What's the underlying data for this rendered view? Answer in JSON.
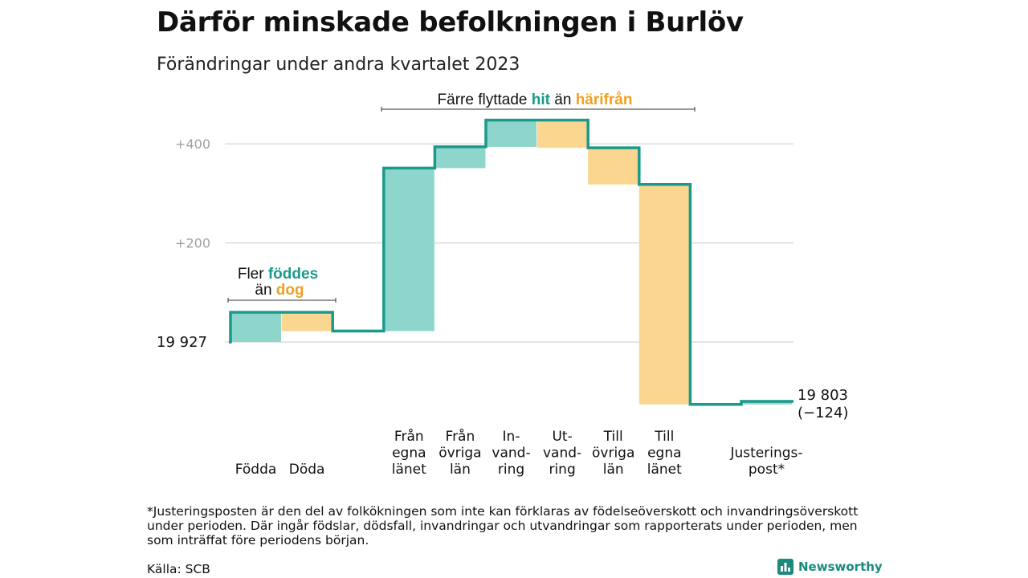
{
  "title": "Därför minskade befolkningen i Burlöv",
  "subtitle": "Förändringar under andra kvartalet 2023",
  "colors": {
    "teal": "#1a9a8a",
    "teal_fill": "#8ed6cc",
    "orange": "#f0a020",
    "orange_fill": "#fad690",
    "grid": "#dcdcdc",
    "tick": "#a0a0a0"
  },
  "chart_data": {
    "type": "waterfall",
    "baseline": 19927,
    "start_label": "19  927",
    "end_label_value": "19 803",
    "end_label_change": "(−124)",
    "y_ticks": [
      {
        "value": 400,
        "label": "+400"
      },
      {
        "value": 200,
        "label": "+200"
      }
    ],
    "ylim": [
      -140,
      450
    ],
    "steps": [
      {
        "label": [
          "Födda"
        ],
        "change": 60,
        "kind": "in"
      },
      {
        "label": [
          "Döda"
        ],
        "change": -38,
        "kind": "out"
      },
      {
        "label": [],
        "change": 0,
        "kind": "none"
      },
      {
        "label": [
          "Från",
          "egna",
          "länet"
        ],
        "change": 329,
        "kind": "in"
      },
      {
        "label": [
          "Från",
          "övriga",
          "län"
        ],
        "change": 43,
        "kind": "in"
      },
      {
        "label": [
          "In-",
          "vand-",
          "ring"
        ],
        "change": 54,
        "kind": "in"
      },
      {
        "label": [
          "Ut-",
          "vand-",
          "ring"
        ],
        "change": -56,
        "kind": "out"
      },
      {
        "label": [
          "Till",
          "övriga",
          "län"
        ],
        "change": -74,
        "kind": "out"
      },
      {
        "label": [
          "Till",
          "egna",
          "länet"
        ],
        "change": -444,
        "kind": "out"
      },
      {
        "label": [],
        "change": 0,
        "kind": "none"
      },
      {
        "label": [
          "Justerings-",
          "post*"
        ],
        "change": 6,
        "kind": "in"
      }
    ],
    "annotations": {
      "births": {
        "prefix": "Fler",
        "hl1": "föddes",
        "line2_prefix": "än",
        "hl2": "dog"
      },
      "migration": {
        "prefix": "Färre flyttade",
        "hl1": "hit",
        "mid": "än",
        "hl2": "härifrån"
      }
    }
  },
  "footnote": "*Justeringsposten är den del av folkökningen som inte kan förklaras av födelseöverskott och invandringsöverskott under perioden. Där ingår födslar, dödsfall, invandringar och utvandringar som rapporterats under perioden, men som inträffat före periodens början.",
  "source": "Källa: SCB",
  "logo_text": "Newsworthy"
}
